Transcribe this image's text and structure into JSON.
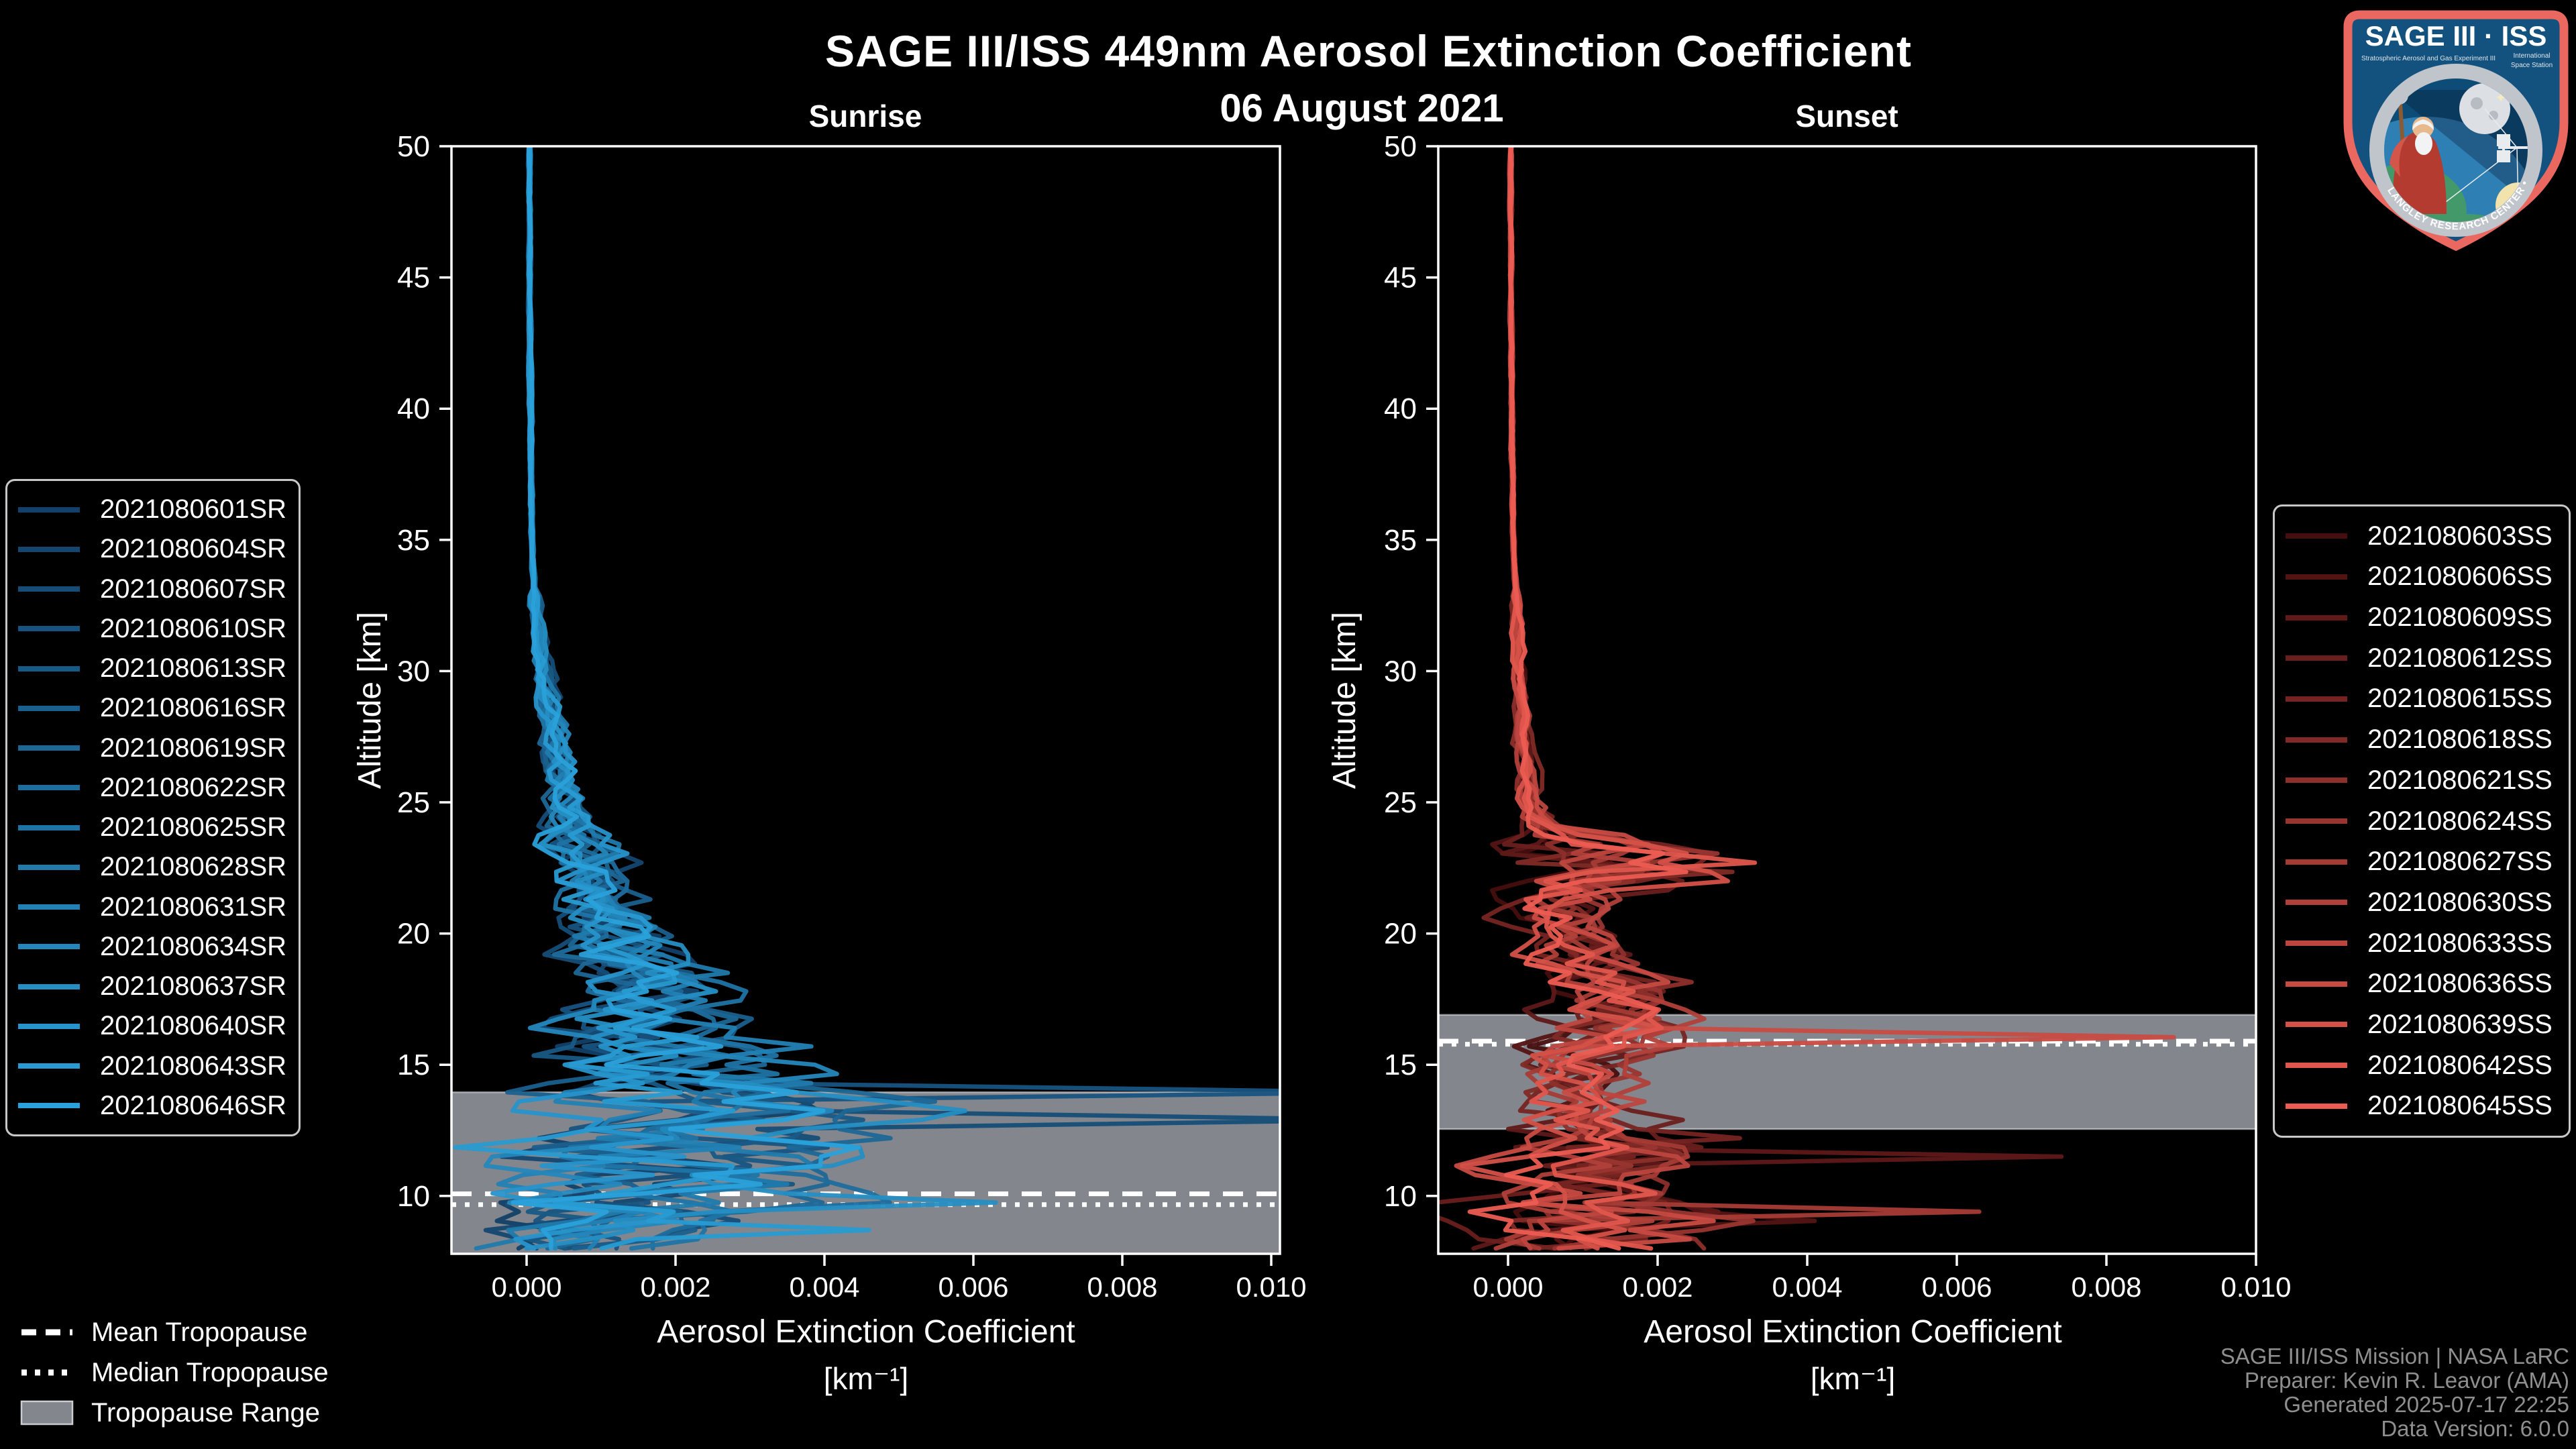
{
  "header": {
    "title": "SAGE III/ISS 449nm Aerosol Extinction Coefficient",
    "date": "06 August 2021"
  },
  "footer": {
    "lines": [
      "SAGE III/ISS Mission | NASA LaRC",
      "Preparer: Kevin R. Leavor (AMA)",
      "Generated 2025-07-17 22:25",
      "Data Version: 6.0.0"
    ]
  },
  "tropopause_legend": {
    "mean": "Mean Tropopause",
    "median": "Median Tropopause",
    "range": "Tropopause Range"
  },
  "logo": {
    "title": "SAGE III · ISS",
    "subtitle_left": "Stratospheric Aerosol and Gas Experiment III",
    "subtitle_right_1": "International",
    "subtitle_right_2": "Space Station",
    "ring_text": "BALL • NASA LANGLEY RESEARCH CENTER • TAS-I • ESA"
  },
  "colors": {
    "background": "#000000",
    "axis": "#ffffff",
    "tropopause_band": "#83868C",
    "tropopause_band_edge": "#c9cdd2",
    "tropopause_lines": "#ffffff",
    "footer_text": "#8f8f8f",
    "legend_border": "#c8c8c8",
    "logo_border": "#EA685F",
    "logo_field": "#13527E"
  },
  "chart_data": [
    {
      "type": "line",
      "title": "Sunrise",
      "xlabel": "Aerosol Extinction Coefficient",
      "xlabel_units": "[km⁻¹]",
      "ylabel": "Altitude [km]",
      "xlim": [
        -0.001,
        0.0102
      ],
      "ylim": [
        7.8,
        50
      ],
      "xticks": [
        0.0,
        0.002,
        0.004,
        0.006,
        0.008,
        0.01
      ],
      "xtick_labels": [
        "0.000",
        "0.002",
        "0.004",
        "0.006",
        "0.008",
        "0.010"
      ],
      "yticks": [
        10,
        15,
        20,
        25,
        30,
        35,
        40,
        45,
        50
      ],
      "ytick_labels": [
        "10",
        "15",
        "20",
        "25",
        "30",
        "35",
        "40",
        "45",
        "50"
      ],
      "grid": false,
      "legend_position": "outside-left",
      "tropopause": {
        "mean_km": 10.08,
        "median_km": 9.67,
        "range_km": [
          7.8,
          13.95
        ]
      },
      "base_profile": {
        "alt_km": [
          50,
          45,
          40,
          35,
          33,
          31,
          29,
          27,
          25,
          23,
          21,
          20,
          19,
          18,
          17,
          16,
          15,
          14,
          13.5,
          13,
          12.5,
          12,
          11.5,
          11,
          10.5,
          10,
          9.5,
          9,
          8.5,
          8
        ],
        "ext_km1": [
          4e-05,
          4e-05,
          5e-05,
          7e-05,
          0.0001,
          0.00018,
          0.00028,
          0.0004,
          0.00055,
          0.0008,
          0.001,
          0.0012,
          0.0014,
          0.0016,
          0.0019,
          0.0021,
          0.0023,
          0.0026,
          0.0027,
          0.0028,
          0.0026,
          0.0023,
          0.002,
          0.0018,
          0.002,
          0.0019,
          0.0014,
          0.001,
          0.0008,
          0.0006
        ]
      },
      "spike_events": [
        {
          "series": 2,
          "alt_km": 12.95,
          "ext_km1": 0.0115
        },
        {
          "series": 3,
          "alt_km": 14.05,
          "ext_km1": 0.0115
        },
        {
          "series": 6,
          "alt_km": 12.4,
          "ext_km1": 0.0042
        },
        {
          "series": 9,
          "alt_km": 10.45,
          "ext_km1": 0.0035
        },
        {
          "series": 12,
          "alt_km": 9.65,
          "ext_km1": 0.0063
        },
        {
          "series": 14,
          "alt_km": 8.85,
          "ext_km1": 0.0046
        }
      ],
      "series": [
        {
          "label": "2021080601SR",
          "color": "#124068"
        },
        {
          "label": "2021080604SR",
          "color": "#144670"
        },
        {
          "label": "2021080607SR",
          "color": "#154D77"
        },
        {
          "label": "2021080610SR",
          "color": "#17537F"
        },
        {
          "label": "2021080613SR",
          "color": "#185A86"
        },
        {
          "label": "2021080616SR",
          "color": "#1A608E"
        },
        {
          "label": "2021080619SR",
          "color": "#1C6796"
        },
        {
          "label": "2021080622SR",
          "color": "#1D6D9D"
        },
        {
          "label": "2021080625SR",
          "color": "#1F74A5"
        },
        {
          "label": "2021080628SR",
          "color": "#207AAC"
        },
        {
          "label": "2021080631SR",
          "color": "#2281B4"
        },
        {
          "label": "2021080634SR",
          "color": "#2487BC"
        },
        {
          "label": "2021080637SR",
          "color": "#258EC3"
        },
        {
          "label": "2021080640SR",
          "color": "#2794CB"
        },
        {
          "label": "2021080643SR",
          "color": "#289BD2"
        },
        {
          "label": "2021080646SR",
          "color": "#2AA1DA"
        }
      ]
    },
    {
      "type": "line",
      "title": "Sunset",
      "xlabel": "Aerosol Extinction Coefficient",
      "xlabel_units": "[km⁻¹]",
      "ylabel": "Altitude [km]",
      "xlim": [
        -0.001,
        0.01
      ],
      "ylim": [
        7.8,
        50
      ],
      "xticks": [
        0.0,
        0.002,
        0.004,
        0.006,
        0.008,
        0.01
      ],
      "xtick_labels": [
        "0.000",
        "0.002",
        "0.004",
        "0.006",
        "0.008",
        "0.010"
      ],
      "yticks": [
        10,
        15,
        20,
        25,
        30,
        35,
        40,
        45,
        50
      ],
      "ytick_labels": [
        "10",
        "15",
        "20",
        "25",
        "30",
        "35",
        "40",
        "45",
        "50"
      ],
      "grid": false,
      "legend_position": "outside-right",
      "tropopause": {
        "mean_km": 15.9,
        "median_km": 15.78,
        "range_km": [
          12.55,
          16.9
        ]
      },
      "base_profile": {
        "alt_km": [
          50,
          45,
          40,
          35,
          30,
          27,
          25,
          24,
          23.2,
          22.5,
          22,
          21.5,
          21,
          20,
          19,
          18,
          17,
          16.5,
          16,
          15.5,
          15,
          14,
          13,
          12.5,
          12,
          11.5,
          11,
          10.5,
          10,
          9.5,
          9,
          8.5,
          8
        ],
        "ext_km1": [
          4e-05,
          4e-05,
          5e-05,
          7e-05,
          0.00015,
          0.0002,
          0.0003,
          0.0005,
          0.0013,
          0.0016,
          0.0013,
          0.0009,
          0.0007,
          0.0008,
          0.001,
          0.0013,
          0.0014,
          0.0013,
          0.0012,
          0.001,
          0.0009,
          0.0009,
          0.0011,
          0.001,
          0.0009,
          0.001,
          0.0009,
          0.001,
          0.0011,
          0.0013,
          0.0014,
          0.0012,
          0.001
        ]
      },
      "spike_events": [
        {
          "series": 11,
          "alt_km": 15.95,
          "ext_km1": 0.0089
        },
        {
          "series": 2,
          "alt_km": 11.45,
          "ext_km1": 0.0074
        },
        {
          "series": 4,
          "alt_km": 12.35,
          "ext_km1": 0.0031
        },
        {
          "series": 8,
          "alt_km": 9.25,
          "ext_km1": 0.0063
        },
        {
          "series": 1,
          "alt_km": 9.0,
          "ext_km1": 0.0041
        },
        {
          "series": 13,
          "alt_km": 22.6,
          "ext_km1": 0.0033
        },
        {
          "series": 5,
          "alt_km": 22.3,
          "ext_km1": 0.003
        },
        {
          "series": 7,
          "alt_km": 23.1,
          "ext_km1": 0.0028
        }
      ],
      "series": [
        {
          "label": "2021080603SS",
          "color": "#460E0E"
        },
        {
          "label": "2021080606SS",
          "color": "#521413"
        },
        {
          "label": "2021080609SS",
          "color": "#5E1918"
        },
        {
          "label": "2021080612SS",
          "color": "#6A1F1D"
        },
        {
          "label": "2021080615SS",
          "color": "#752421"
        },
        {
          "label": "2021080618SS",
          "color": "#812A26"
        },
        {
          "label": "2021080621SS",
          "color": "#8D2F2B"
        },
        {
          "label": "2021080624SS",
          "color": "#993530"
        },
        {
          "label": "2021080627SS",
          "color": "#A53B35"
        },
        {
          "label": "2021080630SS",
          "color": "#B1403A"
        },
        {
          "label": "2021080633SS",
          "color": "#BD463F"
        },
        {
          "label": "2021080636SS",
          "color": "#C84B43"
        },
        {
          "label": "2021080639SS",
          "color": "#D45148"
        },
        {
          "label": "2021080642SS",
          "color": "#E0564D"
        },
        {
          "label": "2021080645SS",
          "color": "#EC5C52"
        }
      ]
    }
  ]
}
